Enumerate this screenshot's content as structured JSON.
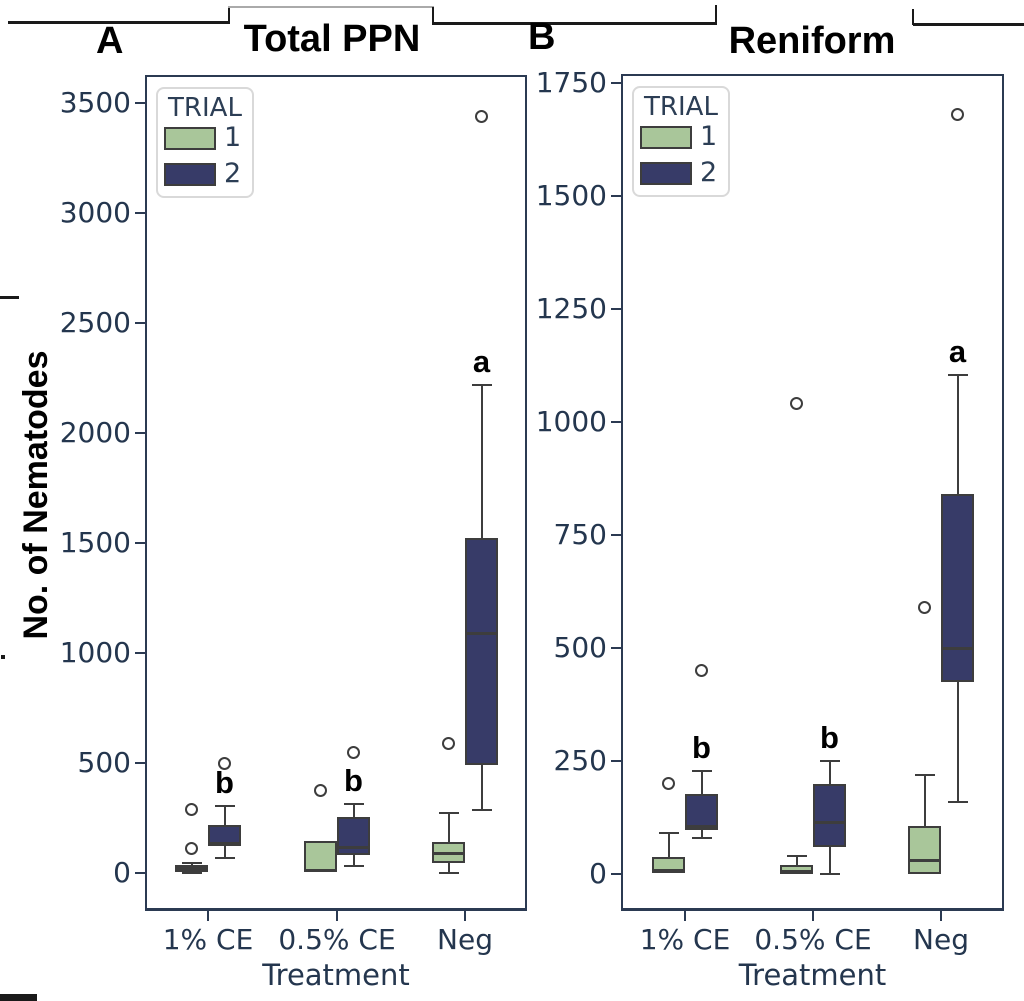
{
  "chart_data": {
    "type": "box",
    "ylabel": "No. of Nematodes",
    "panels": [
      {
        "letter": "A",
        "title": "Total PPN",
        "xlabel": "Treatment",
        "categories": [
          "1% CE",
          "0.5% CE",
          "Neg"
        ],
        "ylim": [
          0,
          3500
        ],
        "yticks": [
          0,
          500,
          1000,
          1500,
          2000,
          2500,
          3000,
          3500
        ],
        "grid": false,
        "legend": {
          "title": "TRIAL",
          "position": "upper left",
          "entries": [
            {
              "label": "1",
              "color": "#a9c69a"
            },
            {
              "label": "2",
              "color": "#373b68"
            }
          ]
        },
        "sig_letters": [
          "b",
          "b",
          "a"
        ],
        "series": [
          {
            "name": "1",
            "color": "#a9c69a",
            "boxes": [
              {
                "whislo": 0,
                "q1": 5,
                "med": 22,
                "q3": 36,
                "whishi": 45,
                "outliers": [
                  110,
                  290
                ]
              },
              {
                "whislo": 0,
                "q1": 4,
                "med": 8,
                "q3": 145,
                "whishi": 145,
                "outliers": [
                  375
                ]
              },
              {
                "whislo": 0,
                "q1": 45,
                "med": 90,
                "q3": 140,
                "whishi": 273,
                "outliers": [
                  590
                ]
              }
            ]
          },
          {
            "name": "2",
            "color": "#373b68",
            "boxes": [
              {
                "whislo": 68,
                "q1": 123,
                "med": 136,
                "q3": 218,
                "whishi": 305,
                "outliers": [
                  500
                ]
              },
              {
                "whislo": 32,
                "q1": 80,
                "med": 118,
                "q3": 255,
                "whishi": 315,
                "outliers": [
                  550
                ]
              },
              {
                "whislo": 286,
                "q1": 490,
                "med": 1090,
                "q3": 1522,
                "whishi": 2218,
                "outliers": [
                  3440
                ]
              }
            ]
          }
        ]
      },
      {
        "letter": "B",
        "title": "Reniform",
        "xlabel": "Treatment",
        "categories": [
          "1% CE",
          "0.5% CE",
          "Neg"
        ],
        "ylim": [
          0,
          1750
        ],
        "yticks": [
          0,
          250,
          500,
          750,
          1000,
          1250,
          1500,
          1750
        ],
        "grid": false,
        "legend": {
          "title": "TRIAL",
          "position": "upper left",
          "entries": [
            {
              "label": "1",
              "color": "#a9c69a"
            },
            {
              "label": "2",
              "color": "#373b68"
            }
          ]
        },
        "sig_letters": [
          "b",
          "b",
          "a"
        ],
        "series": [
          {
            "name": "1",
            "color": "#a9c69a",
            "boxes": [
              {
                "whislo": 0,
                "q1": 2,
                "med": 8,
                "q3": 38,
                "whishi": 90,
                "outliers": [
                  200
                ]
              },
              {
                "whislo": 0,
                "q1": 0,
                "med": 6,
                "q3": 20,
                "whishi": 40,
                "outliers": [
                  1040
                ]
              },
              {
                "whislo": 0,
                "q1": 0,
                "med": 30,
                "q3": 106,
                "whishi": 220,
                "outliers": [
                  590
                ]
              }
            ]
          },
          {
            "name": "2",
            "color": "#373b68",
            "boxes": [
              {
                "whislo": 80,
                "q1": 97,
                "med": 106,
                "q3": 177,
                "whishi": 228,
                "outliers": [
                  450
                ]
              },
              {
                "whislo": 0,
                "q1": 60,
                "med": 113,
                "q3": 200,
                "whishi": 250,
                "outliers": []
              },
              {
                "whislo": 160,
                "q1": 425,
                "med": 500,
                "q3": 840,
                "whishi": 1105,
                "outliers": [
                  1680
                ]
              }
            ]
          }
        ]
      }
    ]
  }
}
